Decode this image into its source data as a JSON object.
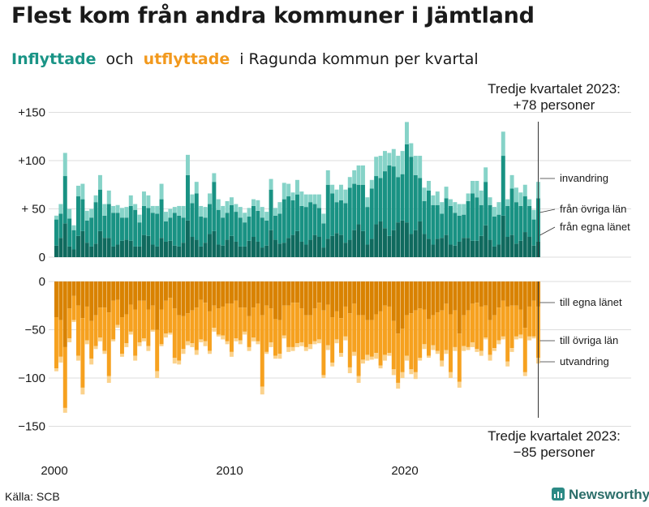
{
  "title": "Flest kom från andra kommuner i Jämtland",
  "subtitle": {
    "in_word": "Inflyttade",
    "and_word": "och",
    "out_word": "utflyttade",
    "rest": "i Ragunda  kommun  per  kvartal"
  },
  "source": "Källa: SCB",
  "brand": "Newsworthy",
  "colors": {
    "in_local": "#0f6a5e",
    "in_other": "#199283",
    "in_abroad": "#86d3c8",
    "out_local": "#d98200",
    "out_other": "#f6a11f",
    "out_abroad": "#fbd28c",
    "in_text": "#1a9486",
    "out_text": "#f2991d"
  },
  "chart_data": {
    "type": "bar",
    "stacked": true,
    "period": "quarterly",
    "x_start_year": 2000,
    "x_ticks": [
      "2000",
      "2010",
      "2020"
    ],
    "y_ticks_top": [
      {
        "v": 150,
        "label": "+150"
      },
      {
        "v": 100,
        "label": "+100"
      },
      {
        "v": 50,
        "label": "+ 50"
      },
      {
        "v": 0,
        "label": "0"
      }
    ],
    "y_ticks_bottom": [
      {
        "v": 0,
        "label": "0"
      },
      {
        "v": -50,
        "label": "−50"
      },
      {
        "v": -100,
        "label": "−100"
      },
      {
        "v": -150,
        "label": "−150"
      }
    ],
    "ylim_top": [
      0,
      150
    ],
    "ylim_bottom": [
      -150,
      0
    ],
    "inflow_totals": [
      43,
      55,
      108,
      50,
      33,
      74,
      76,
      48,
      50,
      64,
      85,
      55,
      69,
      53,
      54,
      51,
      52,
      64,
      55,
      44,
      68,
      64,
      53,
      53,
      76,
      47,
      50,
      52,
      53,
      53,
      106,
      65,
      78,
      53,
      52,
      66,
      87,
      60,
      53,
      58,
      62,
      55,
      52,
      46,
      51,
      60,
      59,
      52,
      47,
      81,
      51,
      57,
      77,
      76,
      67,
      80,
      68,
      65,
      65,
      65,
      65,
      45,
      90,
      75,
      70,
      75,
      70,
      83,
      90,
      95,
      95,
      62,
      80,
      104,
      105,
      110,
      108,
      112,
      105,
      110,
      140,
      118,
      105,
      105,
      72,
      79,
      64,
      68,
      57,
      73,
      60,
      57,
      55,
      55,
      66,
      79,
      79,
      69,
      93,
      62,
      52,
      57,
      130,
      60,
      85,
      72,
      67,
      75,
      60,
      49,
      78
    ],
    "outflow_totals": [
      -93,
      -84,
      -136,
      -63,
      -42,
      -82,
      -117,
      -65,
      -86,
      -70,
      -62,
      -75,
      -105,
      -62,
      -48,
      -78,
      -68,
      -55,
      -82,
      -67,
      -62,
      -72,
      -52,
      -100,
      -67,
      -58,
      -55,
      -85,
      -86,
      -75,
      -66,
      -68,
      -76,
      -63,
      -67,
      -75,
      -52,
      -57,
      -60,
      -65,
      -78,
      -62,
      -65,
      -55,
      -72,
      -62,
      -65,
      -117,
      -75,
      -68,
      -80,
      -80,
      -59,
      -73,
      -72,
      -68,
      -67,
      -72,
      -70,
      -65,
      -64,
      -100,
      -71,
      -88,
      -64,
      -78,
      -61,
      -95,
      -77,
      -105,
      -85,
      -82,
      -81,
      -80,
      -90,
      -82,
      -77,
      -97,
      -111,
      -100,
      -82,
      -96,
      -101,
      -82,
      -70,
      -79,
      -71,
      -75,
      -88,
      -75,
      -100,
      -72,
      -110,
      -72,
      -71,
      -68,
      -73,
      -77,
      -60,
      -82,
      -72,
      -65,
      -60,
      -88,
      -73,
      -60,
      -59,
      -98,
      -61,
      -59,
      -85
    ],
    "series_top": [
      "från egna länet",
      "från övriga län",
      "invandring"
    ],
    "series_bottom": [
      "till egna länet",
      "till övriga län",
      "utvandring"
    ],
    "annotation_top": {
      "line1": "Tredje kvartalet 2023:",
      "line2": "+78 personer"
    },
    "annotation_bottom": {
      "line1": "Tredje kvartalet 2023:",
      "line2": "−85 personer"
    }
  }
}
